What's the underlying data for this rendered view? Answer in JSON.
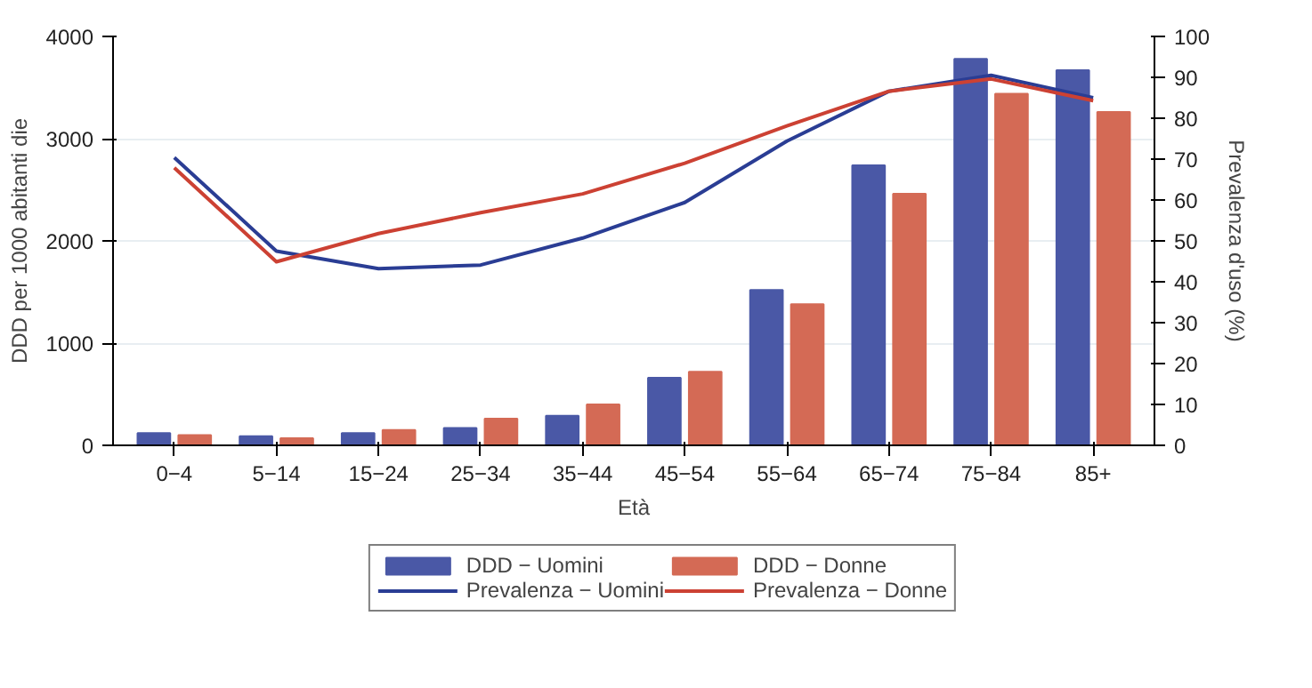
{
  "chart_data": {
    "type": "bar",
    "xlabel": "Età",
    "ylabel": "DDD per 1000 abitanti die",
    "y2label": "Prevalenza d'uso (%)",
    "categories": [
      "0−4",
      "5−14",
      "15−24",
      "25−34",
      "35−44",
      "45−54",
      "55−64",
      "65−74",
      "75−84",
      "85+"
    ],
    "ylim": [
      0,
      4000
    ],
    "yticks": [
      0,
      1000,
      2000,
      3000,
      4000
    ],
    "y2lim": [
      0,
      100
    ],
    "y2ticks": [
      0,
      10,
      20,
      30,
      40,
      50,
      60,
      70,
      80,
      90,
      100
    ],
    "grid": "y",
    "legend": "bottom",
    "series": [
      {
        "name": "DDD − Uomini",
        "color": "#4a58a6",
        "values": [
          120,
          90,
          120,
          170,
          290,
          660,
          1520,
          2740,
          3780,
          3670
        ]
      },
      {
        "name": "DDD − Donne",
        "color": "#d46a55",
        "values": [
          100,
          70,
          150,
          260,
          400,
          720,
          1380,
          2460,
          3440,
          3260
        ]
      },
      {
        "name": "Prevalenza − Uomini",
        "type": "line",
        "axis": "y2",
        "color": "#2a3d94",
        "values": [
          70.4,
          47.5,
          43.2,
          44.1,
          50.7,
          59.4,
          74.4,
          86.6,
          90.5,
          85.0
        ]
      },
      {
        "name": "Prevalenza − Donne",
        "type": "line",
        "axis": "y2",
        "color": "#cc4133",
        "values": [
          67.9,
          44.9,
          51.8,
          56.9,
          61.5,
          69.0,
          78.1,
          86.6,
          89.6,
          84.3
        ]
      }
    ]
  }
}
